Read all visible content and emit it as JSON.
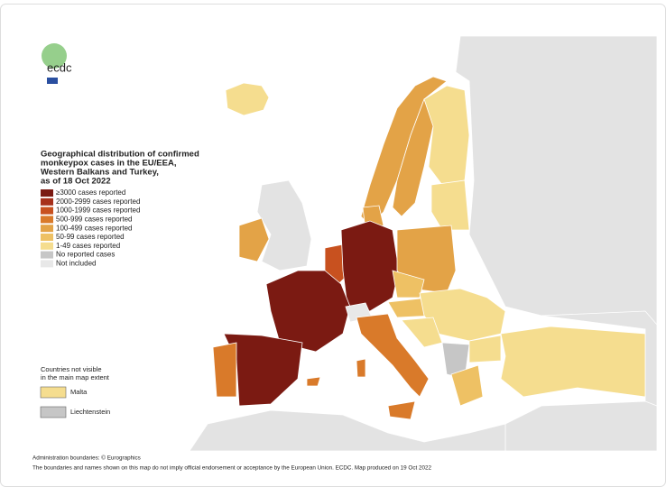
{
  "logo": "ecdc",
  "title_lines": [
    "Geographical distribution of confirmed",
    "monkeypox cases in the EU/EEA,",
    "Western Balkans and Turkey,",
    "as of 18 Oct 2022"
  ],
  "legend": [
    {
      "label": "≥3000 cases reported",
      "color": "#7b1a12"
    },
    {
      "label": "2000-2999 cases reported",
      "color": "#a7301b"
    },
    {
      "label": "1000-1999 cases reported",
      "color": "#c8511f"
    },
    {
      "label": "500-999 cases reported",
      "color": "#d97a2a"
    },
    {
      "label": "100-499 cases reported",
      "color": "#e3a347"
    },
    {
      "label": "50-99 cases reported",
      "color": "#eec164"
    },
    {
      "label": "1-49 cases reported",
      "color": "#f5dd8f"
    },
    {
      "label": "No reported cases",
      "color": "#c6c6c6"
    },
    {
      "label": "Not included",
      "color": "#e8e8e8"
    }
  ],
  "inset": {
    "title_lines": [
      "Countries not visible",
      "in the main map extent"
    ],
    "items": [
      {
        "label": "Malta",
        "color": "#f5dd8f"
      },
      {
        "label": "Liechtenstein",
        "color": "#c6c6c6"
      }
    ]
  },
  "footer": [
    "Administration boundaries: © Eurographics",
    "The boundaries and names shown on this map do not imply official endorsement or acceptance by the European Union. ECDC. Map produced on 19 Oct 2022"
  ]
}
